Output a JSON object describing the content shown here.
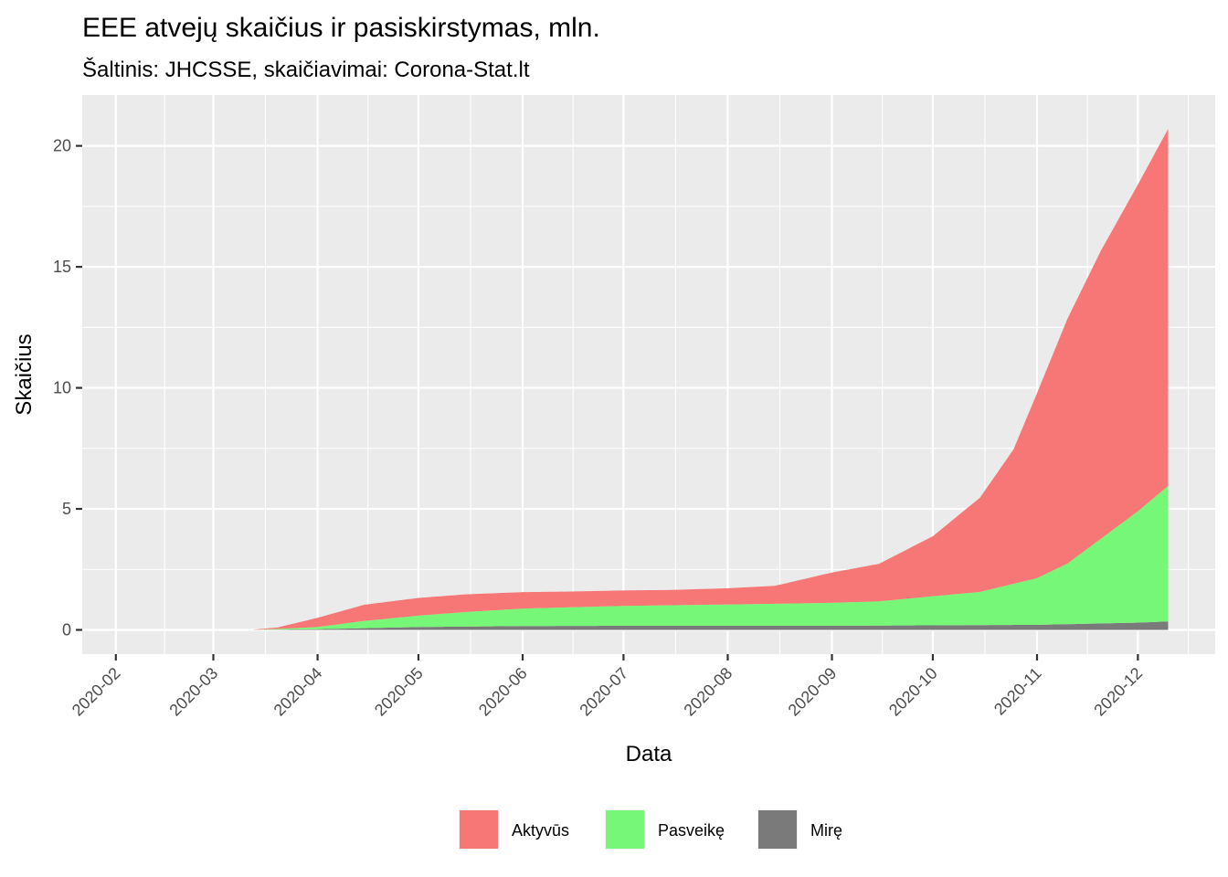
{
  "chart_data": {
    "type": "area",
    "stacked": true,
    "title": "EEE atvejų skaičius ir pasiskirstymas, mln.",
    "subtitle": "Šaltinis: JHCSSE, skaičiavimai: Corona-Stat.lt",
    "xlabel": "Data",
    "ylabel": "Skaičius",
    "x_tick_labels": [
      "2020-02",
      "2020-03",
      "2020-04",
      "2020-05",
      "2020-06",
      "2020-07",
      "2020-08",
      "2020-09",
      "2020-10",
      "2020-11",
      "2020-12"
    ],
    "x_tick_dates": [
      "2020-02-01",
      "2020-03-01",
      "2020-04-01",
      "2020-05-01",
      "2020-06-01",
      "2020-07-01",
      "2020-08-01",
      "2020-09-01",
      "2020-10-01",
      "2020-11-01",
      "2020-12-01"
    ],
    "xlim": [
      "2020-01-22",
      "2020-12-24"
    ],
    "y_ticks": [
      0,
      5,
      10,
      15,
      20
    ],
    "ylim": [
      -1.0,
      22.1
    ],
    "grid": true,
    "legend_position": "bottom",
    "series": [
      {
        "name": "Mirę",
        "color": "#7a7a7a",
        "x": [
          "2020-03-13",
          "2020-04-01",
          "2020-05-01",
          "2020-06-01",
          "2020-07-01",
          "2020-08-01",
          "2020-09-01",
          "2020-10-01",
          "2020-11-01",
          "2020-12-01",
          "2020-12-10"
        ],
        "values": [
          0.0,
          0.03,
          0.12,
          0.16,
          0.17,
          0.17,
          0.17,
          0.19,
          0.21,
          0.3,
          0.35
        ]
      },
      {
        "name": "Pasveikę",
        "color": "#77f777",
        "x": [
          "2020-03-13",
          "2020-03-25",
          "2020-04-01",
          "2020-04-15",
          "2020-05-01",
          "2020-05-15",
          "2020-06-01",
          "2020-06-15",
          "2020-07-01",
          "2020-07-15",
          "2020-08-01",
          "2020-08-15",
          "2020-09-01",
          "2020-09-15",
          "2020-10-01",
          "2020-10-15",
          "2020-11-01",
          "2020-11-10",
          "2020-11-20",
          "2020-12-01",
          "2020-12-10"
        ],
        "values": [
          0.0,
          0.05,
          0.09,
          0.3,
          0.47,
          0.6,
          0.72,
          0.77,
          0.82,
          0.85,
          0.88,
          0.91,
          0.95,
          1.0,
          1.2,
          1.37,
          1.93,
          2.5,
          3.5,
          4.6,
          5.6
        ]
      },
      {
        "name": "Aktyvūs",
        "color": "#f77777",
        "x": [
          "2020-03-13",
          "2020-03-20",
          "2020-04-01",
          "2020-04-15",
          "2020-05-01",
          "2020-05-15",
          "2020-06-01",
          "2020-06-15",
          "2020-07-01",
          "2020-07-15",
          "2020-08-01",
          "2020-08-15",
          "2020-09-01",
          "2020-09-15",
          "2020-10-01",
          "2020-10-15",
          "2020-10-25",
          "2020-11-01",
          "2020-11-10",
          "2020-11-20",
          "2020-12-01",
          "2020-12-10"
        ],
        "values": [
          0.01,
          0.06,
          0.38,
          0.67,
          0.73,
          0.73,
          0.68,
          0.65,
          0.64,
          0.63,
          0.67,
          0.74,
          1.25,
          1.55,
          2.48,
          3.89,
          5.55,
          7.64,
          10.1,
          11.9,
          13.5,
          14.75
        ]
      }
    ],
    "legend_order": [
      "Aktyvūs",
      "Pasveikę",
      "Mirę"
    ]
  }
}
